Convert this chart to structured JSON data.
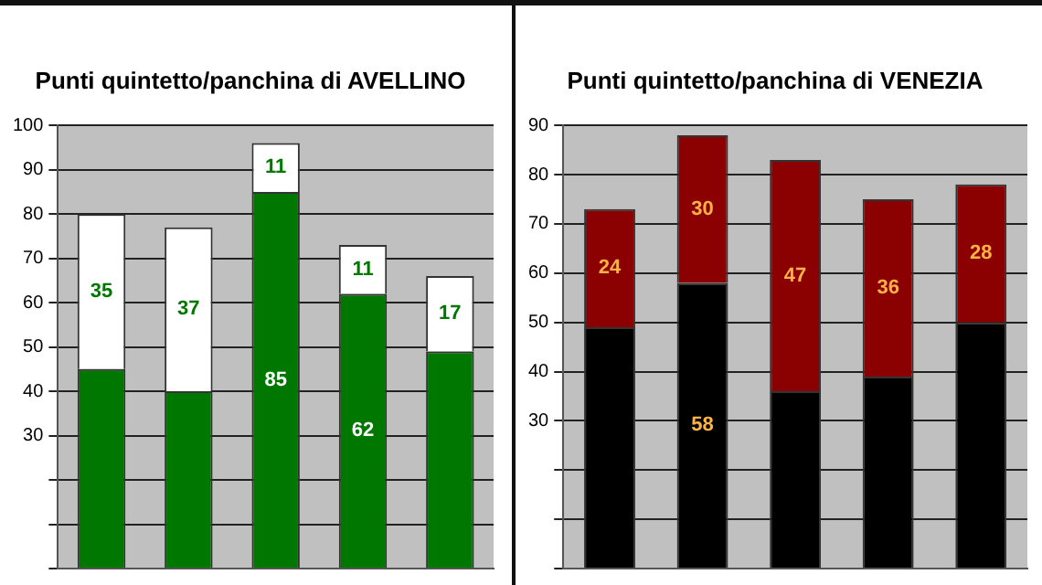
{
  "chart_data": [
    {
      "type": "bar",
      "title": "Punti quintetto/panchina di AVELLINO",
      "categories": [
        null,
        null,
        null,
        null,
        null
      ],
      "stacked": true,
      "grid": "y",
      "tick_labels": "y",
      "ylim": [
        0,
        100
      ],
      "yticks": [
        {
          "value": 0,
          "label": null
        },
        {
          "value": 10,
          "label": null
        },
        {
          "value": 20,
          "label": null
        },
        30,
        40,
        50,
        60,
        70,
        80,
        90,
        100
      ],
      "series": [
        {
          "color": "#007800",
          "values": [
            45,
            40,
            85,
            62,
            49
          ],
          "value_labels": [
            null,
            null,
            "85",
            "62",
            null
          ]
        },
        {
          "color": "#ffffff",
          "values": [
            35,
            37,
            11,
            11,
            17
          ],
          "value_labels": [
            "35",
            "37",
            "11",
            "11",
            "17"
          ]
        }
      ]
    },
    {
      "type": "bar",
      "title": "Punti quintetto/panchina di VENEZIA",
      "categories": [
        null,
        null,
        null,
        null,
        null
      ],
      "stacked": true,
      "grid": "y",
      "tick_labels": "y",
      "ylim": [
        0,
        90
      ],
      "yticks": [
        {
          "value": 0,
          "label": null
        },
        {
          "value": 10,
          "label": null
        },
        {
          "value": 20,
          "label": null
        },
        30,
        40,
        50,
        60,
        70,
        80,
        90
      ],
      "series": [
        {
          "color": "#000000",
          "values": [
            49,
            58,
            36,
            39,
            50
          ],
          "value_labels": [
            null,
            "58",
            null,
            null,
            null
          ]
        },
        {
          "color": "#8b0000",
          "values": [
            24,
            30,
            47,
            36,
            28
          ],
          "value_labels": [
            "24",
            "30",
            "47",
            "36",
            "28"
          ]
        }
      ]
    }
  ]
}
